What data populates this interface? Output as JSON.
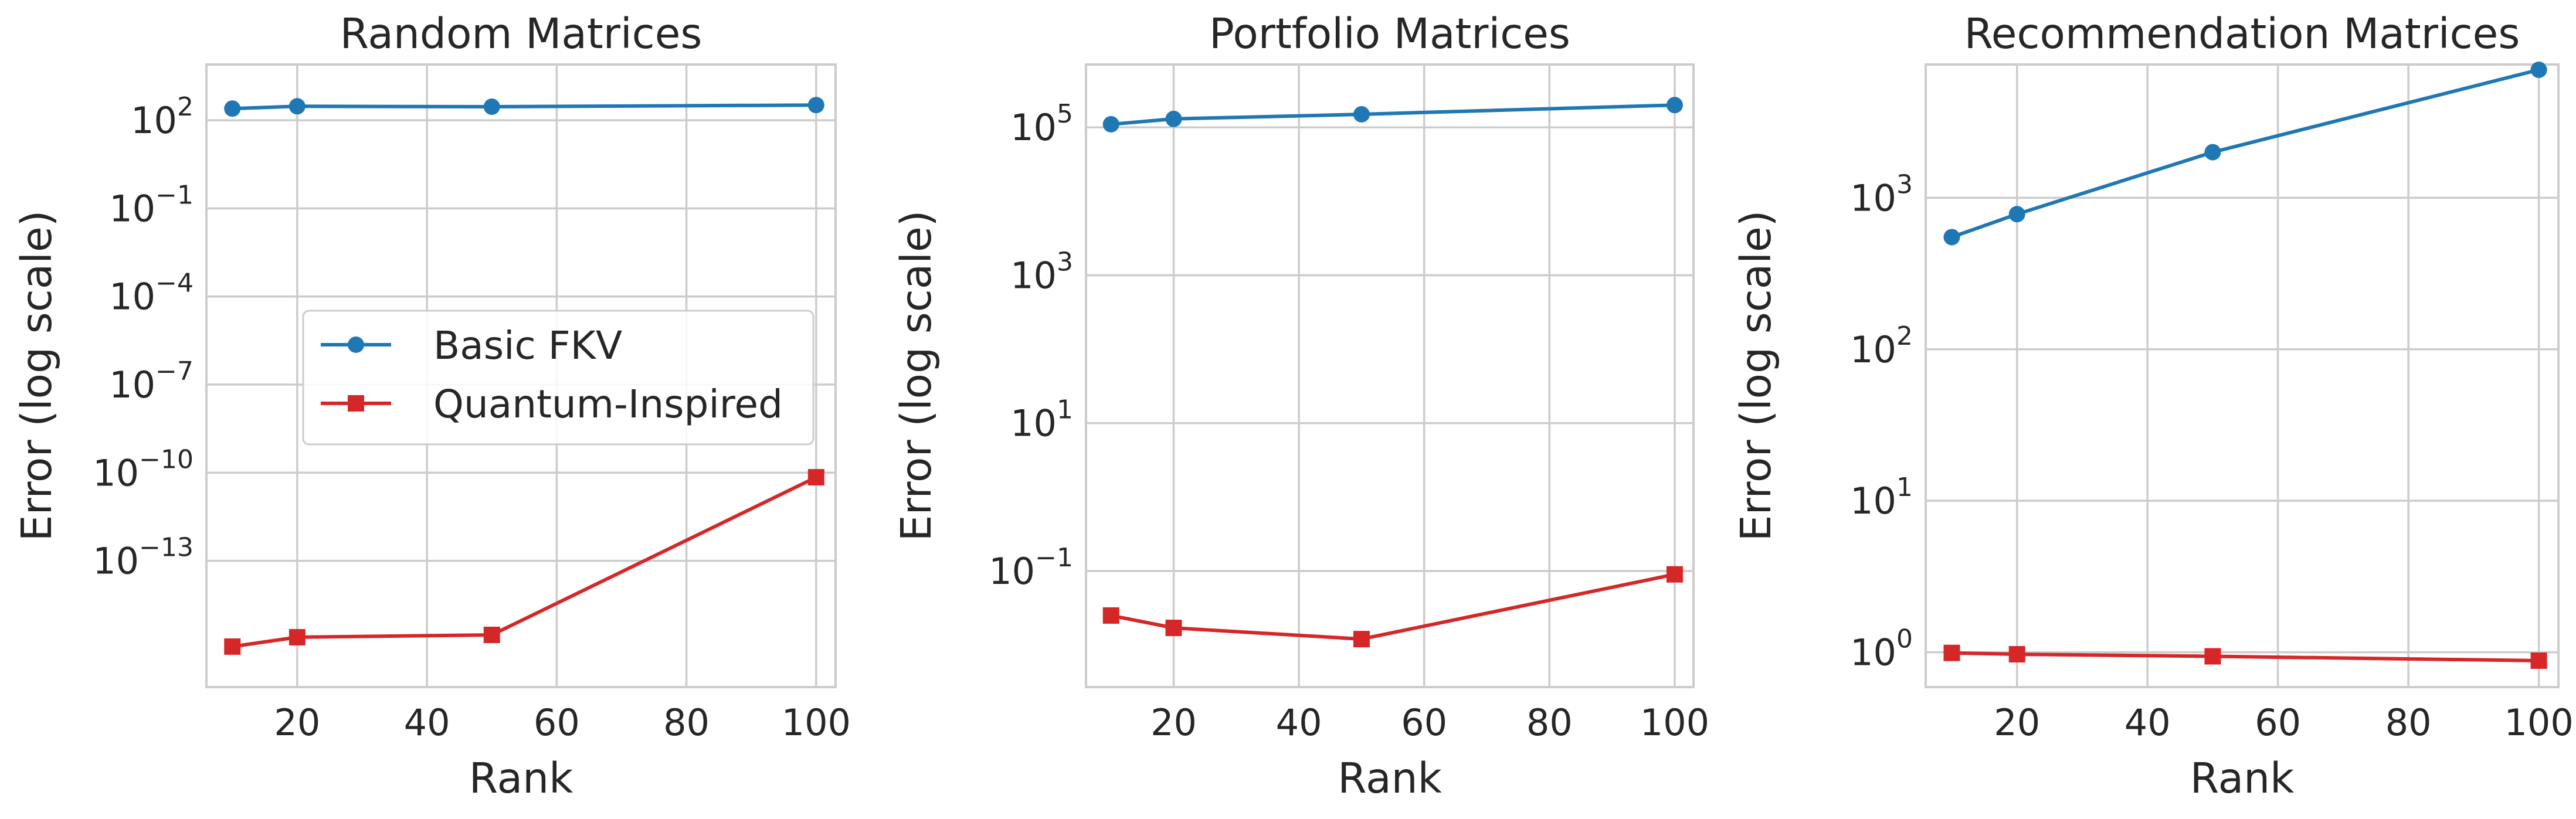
{
  "chart_data": [
    {
      "type": "line",
      "title": "Random Matrices",
      "xlabel": "Rank",
      "ylabel": "Error (log scale)",
      "yscale": "log",
      "xlim": [
        6,
        103
      ],
      "ylim_exp": [
        -17.3,
        3.9
      ],
      "xticks": [
        20,
        40,
        60,
        80,
        100
      ],
      "yticks_exp": [
        2,
        -1,
        -4,
        -7,
        -10,
        -13
      ],
      "grid": true,
      "legend": "center-right",
      "series": [
        {
          "name": "Basic FKV",
          "color": "#1f77b4",
          "marker": "circle",
          "x": [
            10,
            20,
            50,
            100
          ],
          "y": [
            250,
            300,
            290,
            330
          ]
        },
        {
          "name": "Quantum-Inspired",
          "color": "#d62728",
          "marker": "square",
          "x": [
            10,
            20,
            50,
            100
          ],
          "y": [
            1.2e-16,
            2.5e-16,
            3e-16,
            7e-11
          ]
        }
      ]
    },
    {
      "type": "line",
      "title": "Portfolio Matrices",
      "xlabel": "Rank",
      "ylabel": "Error (log scale)",
      "yscale": "log",
      "xlim": [
        6,
        103
      ],
      "ylim_exp": [
        -2.57,
        5.85
      ],
      "xticks": [
        20,
        40,
        60,
        80,
        100
      ],
      "yticks_exp": [
        5,
        3,
        1,
        -1
      ],
      "grid": true,
      "legend": "none",
      "series": [
        {
          "name": "Basic FKV",
          "color": "#1f77b4",
          "marker": "circle",
          "x": [
            10,
            20,
            50,
            100
          ],
          "y": [
            110000,
            130000,
            150000,
            200000
          ]
        },
        {
          "name": "Quantum-Inspired",
          "color": "#d62728",
          "marker": "square",
          "x": [
            10,
            20,
            50,
            100
          ],
          "y": [
            0.025,
            0.017,
            0.012,
            0.09
          ]
        }
      ]
    },
    {
      "type": "line",
      "title": "Recommendation Matrices",
      "xlabel": "Rank",
      "ylabel": "Error (log scale)",
      "yscale": "log",
      "xlim": [
        6,
        103
      ],
      "ylim_exp": [
        -0.23,
        3.88
      ],
      "xticks": [
        20,
        40,
        60,
        80,
        100
      ],
      "yticks_exp": [
        0,
        1,
        2,
        3
      ],
      "grid": true,
      "legend": "none",
      "series": [
        {
          "name": "Basic FKV",
          "color": "#1f77b4",
          "marker": "circle",
          "x": [
            10,
            20,
            50,
            100
          ],
          "y": [
            550,
            780,
            2000,
            7000
          ]
        },
        {
          "name": "Quantum-Inspired",
          "color": "#d62728",
          "marker": "square",
          "x": [
            10,
            20,
            50,
            100
          ],
          "y": [
            0.99,
            0.97,
            0.94,
            0.88
          ]
        }
      ]
    }
  ]
}
